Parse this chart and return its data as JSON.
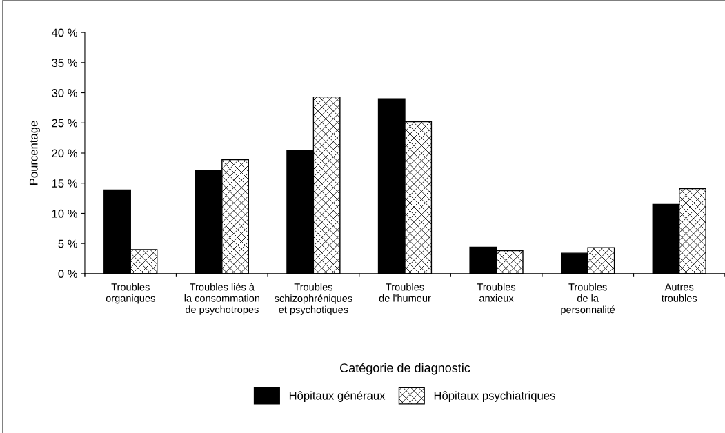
{
  "chart_data": {
    "type": "bar",
    "xlabel": "Catégorie de diagnostic",
    "ylabel": "Pourcentage",
    "categories": [
      "Troubles\norganiques",
      "Troubles liés à\nla consommation\nde psychotropes",
      "Troubles\nschizophréniques\net psychotiques",
      "Troubles\nde l'humeur",
      "Troubles\nanxieux",
      "Troubles\nde la\npersonnalité",
      "Autres\ntroubles"
    ],
    "series": [
      {
        "name": "Hôpitaux généraux",
        "color": "#000000",
        "values": [
          13.9,
          17.1,
          20.5,
          29.0,
          4.4,
          3.4,
          11.5
        ]
      },
      {
        "name": "Hôpitaux psychiatriques",
        "color": "#000000",
        "values": [
          4.0,
          18.9,
          29.3,
          25.2,
          3.8,
          4.3,
          14.1
        ]
      }
    ],
    "ylim": [
      0,
      40
    ],
    "yticks": [
      {
        "value": 0,
        "label": "0 %"
      },
      {
        "value": 5,
        "label": "5 %"
      },
      {
        "value": 10,
        "label": "10 %"
      },
      {
        "value": 15,
        "label": "15 %"
      },
      {
        "value": 20,
        "label": "20 %"
      },
      {
        "value": 25,
        "label": "25 %"
      },
      {
        "value": 30,
        "label": "30 %"
      },
      {
        "value": 35,
        "label": "35 %"
      },
      {
        "value": 40,
        "label": "40 %"
      }
    ],
    "grid": false,
    "legend": "bottom"
  }
}
